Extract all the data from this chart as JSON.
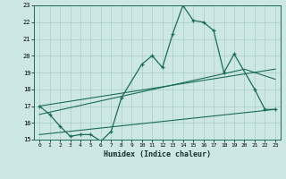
{
  "xlabel": "Humidex (Indice chaleur)",
  "bg_color": "#cde8e4",
  "grid_color": "#aaccc7",
  "line_color": "#1a6b5a",
  "xlim": [
    -0.5,
    23.5
  ],
  "ylim": [
    15,
    23
  ],
  "xticks": [
    0,
    1,
    2,
    3,
    4,
    5,
    6,
    7,
    8,
    9,
    10,
    11,
    12,
    13,
    14,
    15,
    16,
    17,
    18,
    19,
    20,
    21,
    22,
    23
  ],
  "yticks": [
    15,
    16,
    17,
    18,
    19,
    20,
    21,
    22,
    23
  ],
  "main_x": [
    0,
    1,
    2,
    3,
    4,
    5,
    6,
    7,
    8,
    10,
    11,
    12,
    13,
    14,
    15,
    16,
    17,
    18,
    19,
    21,
    22,
    23
  ],
  "main_y": [
    17.0,
    16.5,
    15.8,
    15.2,
    15.3,
    15.3,
    14.9,
    15.5,
    17.5,
    19.5,
    20.0,
    19.3,
    21.3,
    23.0,
    22.1,
    22.0,
    21.5,
    19.0,
    20.1,
    18.0,
    16.8,
    16.8
  ],
  "trend1_x": [
    0,
    23
  ],
  "trend1_y": [
    15.3,
    16.8
  ],
  "trend2_x": [
    0,
    20,
    23
  ],
  "trend2_y": [
    16.5,
    19.2,
    18.6
  ],
  "trend3_x": [
    0,
    23
  ],
  "trend3_y": [
    17.0,
    19.2
  ]
}
